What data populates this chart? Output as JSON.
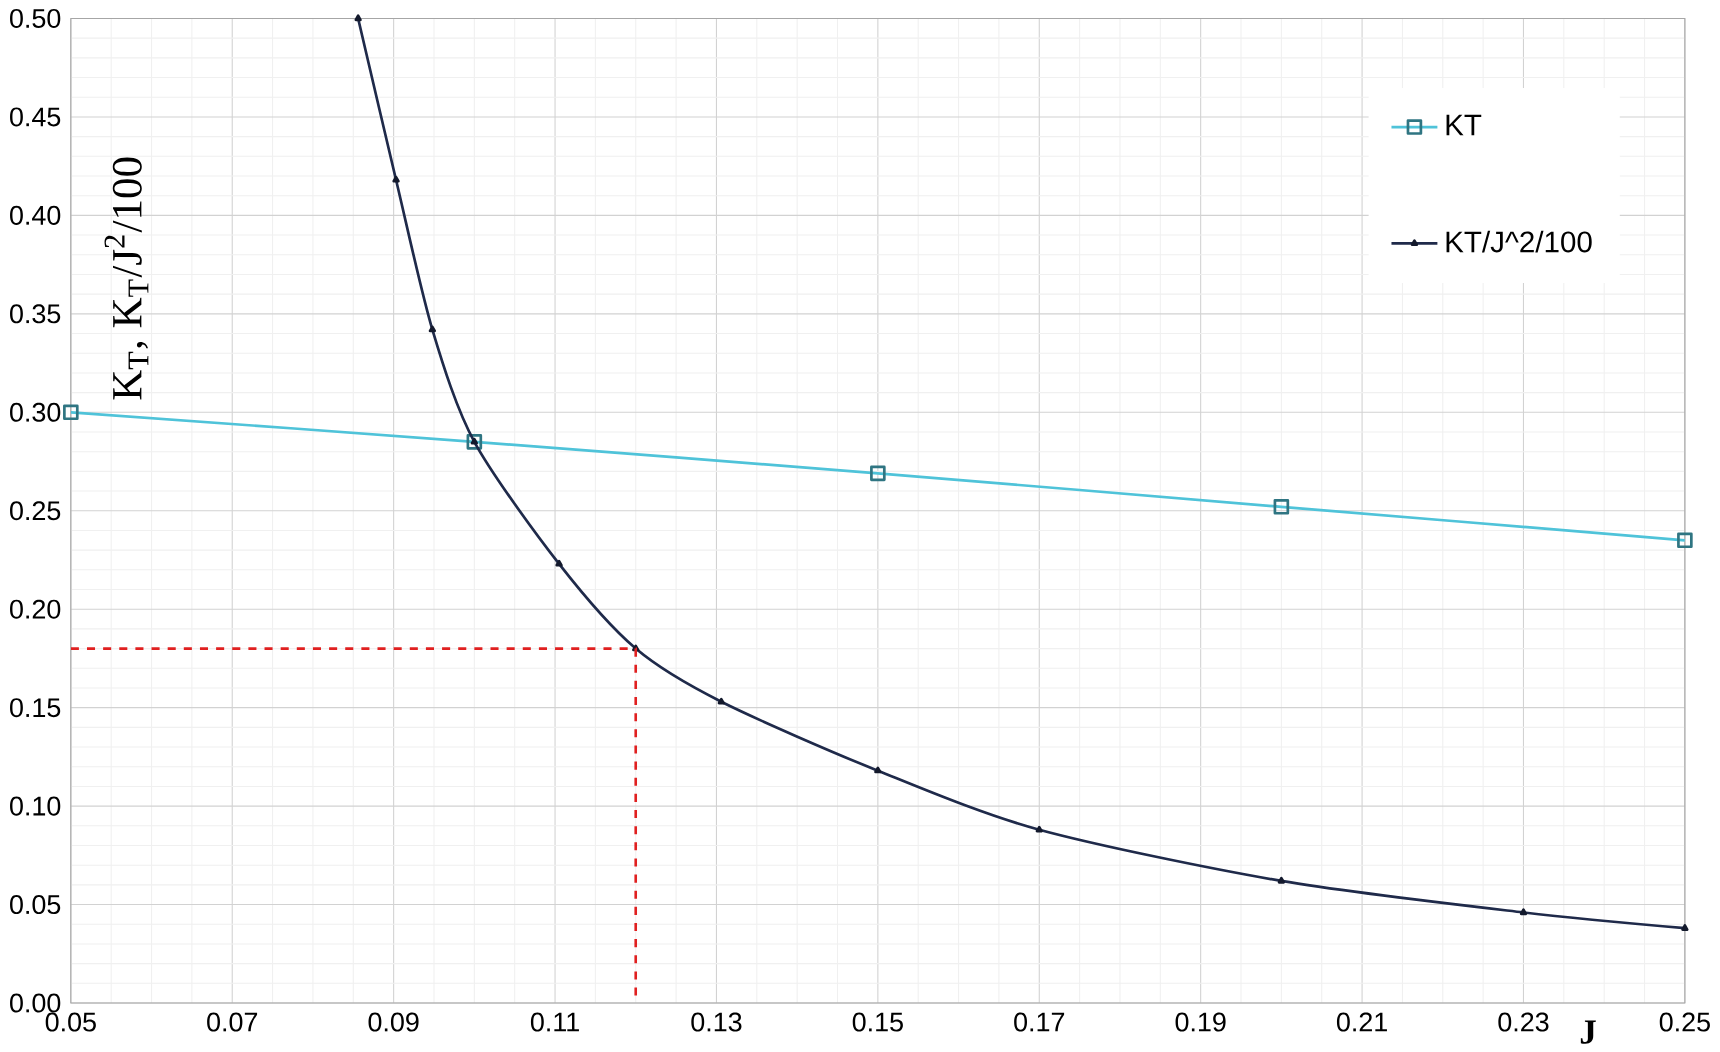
{
  "chart_data": {
    "type": "line",
    "xlabel": "J",
    "ylabel": "K$_{T}$, K$_{T}$/J$^{2}$/100",
    "xlim": [
      0.05,
      0.25
    ],
    "xticks": [
      0.05,
      0.07,
      0.09,
      0.11,
      0.13,
      0.15,
      0.17,
      0.19,
      0.21,
      0.23,
      0.25
    ],
    "ylim": [
      0,
      0.5
    ],
    "yticks": [
      {
        "value": 0,
        "label": "0.00"
      },
      0.05,
      {
        "value": 0.1,
        "label": "0.10"
      },
      0.15,
      {
        "value": 0.2,
        "label": "0.20"
      },
      0.25,
      {
        "value": 0.3,
        "label": "0.30"
      },
      0.35,
      {
        "value": 0.4,
        "label": "0.40"
      },
      0.45,
      {
        "value": 0.5,
        "label": "0.50"
      }
    ],
    "grid": true,
    "legend": "top right",
    "series": [
      {
        "name": "KT",
        "color": "#4fc3d9",
        "marker": "square",
        "x": [
          0.05,
          0.1,
          0.15,
          0.2,
          0.25
        ],
        "values": [
          0.3,
          0.285,
          0.269,
          0.252,
          0.235
        ]
      },
      {
        "name": "KT/J^2/100",
        "color": "#1f2a4a",
        "marker": "triangle",
        "x": [
          0.0856,
          0.0903,
          0.0948,
          0.1,
          0.1105,
          0.12,
          0.1306,
          0.15,
          0.17,
          0.2,
          0.23,
          0.25
        ],
        "values": [
          0.5,
          0.418,
          0.342,
          0.285,
          0.223,
          0.18,
          0.153,
          0.118,
          0.088,
          0.062,
          0.046,
          0.038
        ]
      },
      {
        "color": "#e02020",
        "marker": "none",
        "line_style": "dashed",
        "x": [
          0.05,
          0.12,
          0.12
        ],
        "values": [
          0.18,
          0.18,
          0.0
        ]
      }
    ]
  }
}
